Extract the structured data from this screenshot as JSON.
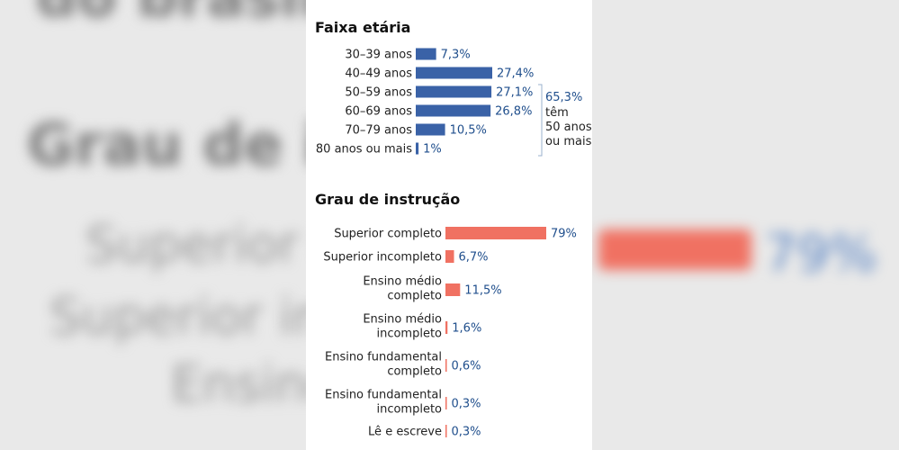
{
  "chart_data": [
    {
      "type": "bar",
      "orientation": "horizontal",
      "title": "Faixa etária",
      "categories": [
        "30–39 anos",
        "40–49 anos",
        "50–59 anos",
        "60–69 anos",
        "70–79 anos",
        "80 anos ou mais"
      ],
      "values": [
        7.3,
        27.4,
        27.1,
        26.8,
        10.5,
        1
      ],
      "value_labels": [
        "7,3%",
        "27,4%",
        "27,1%",
        "26,8%",
        "10,5%",
        "1%"
      ],
      "unit": "%",
      "color": "#3a62a7",
      "annotation": {
        "value": "65,3%",
        "lines": [
          "têm",
          "50 anos",
          "ou mais"
        ]
      }
    },
    {
      "type": "bar",
      "orientation": "horizontal",
      "title": "Grau de instrução",
      "categories": [
        [
          "Superior completo"
        ],
        [
          "Superior incompleto"
        ],
        [
          "Ensino médio",
          "completo"
        ],
        [
          "Ensino médio",
          "incompleto"
        ],
        [
          "Ensino fundamental",
          "completo"
        ],
        [
          "Ensino fundamental",
          "incompleto"
        ],
        [
          "Lê e escreve"
        ]
      ],
      "values": [
        79,
        6.7,
        11.5,
        1.6,
        0.6,
        0.3,
        0.3
      ],
      "value_labels": [
        "79%",
        "6,7%",
        "11,5%",
        "1,6%",
        "0,6%",
        "0,3%",
        "0,3%"
      ],
      "unit": "%",
      "color": "#f07162"
    }
  ],
  "colors": {
    "age_bar": "#3a62a7",
    "edu_bar": "#f07162",
    "value_text": "#1f4e8c"
  }
}
